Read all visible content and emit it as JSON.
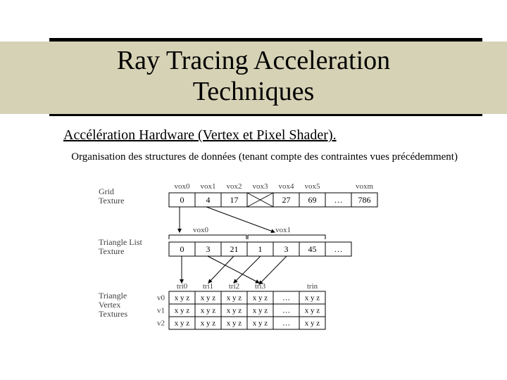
{
  "title_line1": "Ray Tracing Acceleration",
  "title_line2": "Techniques",
  "subtitle": "Accélération Hardware (Vertex et Pixel Shader).",
  "body": "Organisation des structures de données (tenant compte des contraintes vues précédemment)",
  "diagram": {
    "grid": {
      "label": "Grid\nTexture",
      "headers": [
        "vox0",
        "vox1",
        "vox2",
        "vox3",
        "vox4",
        "vox5",
        "voxm"
      ],
      "cells": [
        "0",
        "4",
        "17",
        "X",
        "27",
        "69",
        "…",
        "786"
      ]
    },
    "triList": {
      "label": "Triangle List\nTexture",
      "bracketLabels": [
        "vox0",
        "vox1"
      ],
      "cells": [
        "0",
        "3",
        "21",
        "1",
        "3",
        "45",
        "…"
      ]
    },
    "vertex": {
      "label": "Triangle\nVertex\nTextures",
      "headers": [
        "tri0",
        "tri1",
        "tri2",
        "tri3",
        "trin"
      ],
      "rowLabels": [
        "v0",
        "v1",
        "v2"
      ],
      "cellText": "x y z",
      "ellipsis": "…"
    },
    "colors": {
      "background": "#ffffff",
      "band": "#d6d2b5",
      "rule": "#000000",
      "stroke": "#000000",
      "label": "#404040"
    }
  }
}
